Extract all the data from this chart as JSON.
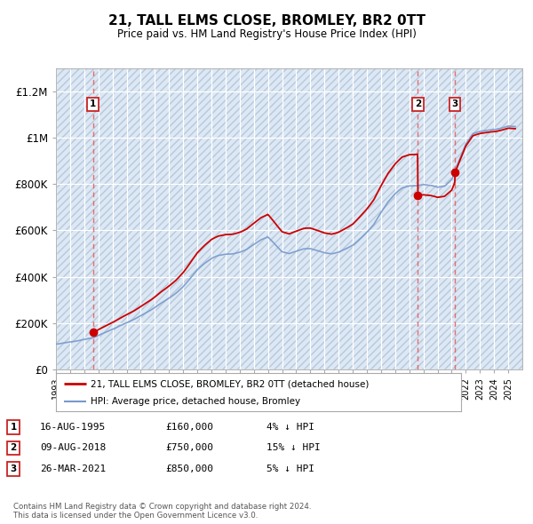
{
  "title": "21, TALL ELMS CLOSE, BROMLEY, BR2 0TT",
  "subtitle": "Price paid vs. HM Land Registry's House Price Index (HPI)",
  "ylim": [
    0,
    1300000
  ],
  "yticks": [
    0,
    200000,
    400000,
    600000,
    800000,
    1000000,
    1200000
  ],
  "ytick_labels": [
    "£0",
    "£200K",
    "£400K",
    "£600K",
    "£800K",
    "£1M",
    "£1.2M"
  ],
  "x_start_year": 1993,
  "x_end_year": 2026,
  "transactions": [
    {
      "date_decimal": 1995.619,
      "price": 160000,
      "label": "1"
    },
    {
      "date_decimal": 2018.603,
      "price": 750000,
      "label": "2"
    },
    {
      "date_decimal": 2021.231,
      "price": 850000,
      "label": "3"
    }
  ],
  "legend_entries": [
    {
      "label": "21, TALL ELMS CLOSE, BROMLEY, BR2 0TT (detached house)",
      "color": "#cc0000"
    },
    {
      "label": "HPI: Average price, detached house, Bromley",
      "color": "#7799cc"
    }
  ],
  "table_rows": [
    {
      "num": "1",
      "date": "16-AUG-1995",
      "price": "£160,000",
      "hpi": "4% ↓ HPI"
    },
    {
      "num": "2",
      "date": "09-AUG-2018",
      "price": "£750,000",
      "hpi": "15% ↓ HPI"
    },
    {
      "num": "3",
      "date": "26-MAR-2021",
      "price": "£850,000",
      "hpi": "5% ↓ HPI"
    }
  ],
  "footer": "Contains HM Land Registry data © Crown copyright and database right 2024.\nThis data is licensed under the Open Government Licence v3.0.",
  "bg_color": "#dce8f5",
  "line_color_red": "#cc0000",
  "line_color_blue": "#7799cc",
  "vline_color": "#ee5555",
  "box_color": "#cc2222",
  "hpi_data": {
    "years": [
      1993.0,
      1993.1,
      1993.2,
      1993.3,
      1993.4,
      1993.5,
      1993.6,
      1993.7,
      1993.8,
      1993.9,
      1994.0,
      1994.1,
      1994.2,
      1994.3,
      1994.4,
      1994.5,
      1994.6,
      1994.7,
      1994.8,
      1994.9,
      1995.0,
      1995.1,
      1995.2,
      1995.3,
      1995.4,
      1995.5,
      1995.6,
      1995.7,
      1995.8,
      1995.9,
      1996.0,
      1996.5,
      1997.0,
      1997.5,
      1998.0,
      1998.5,
      1999.0,
      1999.5,
      2000.0,
      2000.5,
      2001.0,
      2001.5,
      2002.0,
      2002.5,
      2003.0,
      2003.5,
      2004.0,
      2004.5,
      2005.0,
      2005.5,
      2006.0,
      2006.5,
      2007.0,
      2007.5,
      2008.0,
      2008.5,
      2009.0,
      2009.5,
      2010.0,
      2010.5,
      2011.0,
      2011.5,
      2012.0,
      2012.5,
      2013.0,
      2013.5,
      2014.0,
      2014.5,
      2015.0,
      2015.5,
      2016.0,
      2016.5,
      2017.0,
      2017.5,
      2018.0,
      2018.5,
      2019.0,
      2019.5,
      2020.0,
      2020.5,
      2021.0,
      2021.5,
      2022.0,
      2022.5,
      2023.0,
      2023.5,
      2024.0,
      2024.5,
      2025.0
    ],
    "values": [
      105000,
      105500,
      106000,
      106500,
      107000,
      107500,
      108000,
      108500,
      109000,
      109500,
      110000,
      111000,
      112000,
      113000,
      114000,
      115000,
      116000,
      117000,
      118000,
      119000,
      120000,
      121000,
      122000,
      123000,
      124000,
      125000,
      126000,
      128000,
      130000,
      132000,
      135000,
      145000,
      158000,
      172000,
      188000,
      205000,
      222000,
      240000,
      258000,
      278000,
      298000,
      318000,
      345000,
      378000,
      410000,
      435000,
      455000,
      468000,
      475000,
      475000,
      482000,
      492000,
      510000,
      530000,
      540000,
      510000,
      478000,
      468000,
      478000,
      488000,
      492000,
      488000,
      480000,
      478000,
      485000,
      498000,
      515000,
      540000,
      568000,
      600000,
      645000,
      688000,
      720000,
      745000,
      755000,
      755000,
      760000,
      755000,
      745000,
      750000,
      775000,
      850000,
      920000,
      960000,
      970000,
      975000,
      980000,
      990000,
      1000000
    ]
  }
}
